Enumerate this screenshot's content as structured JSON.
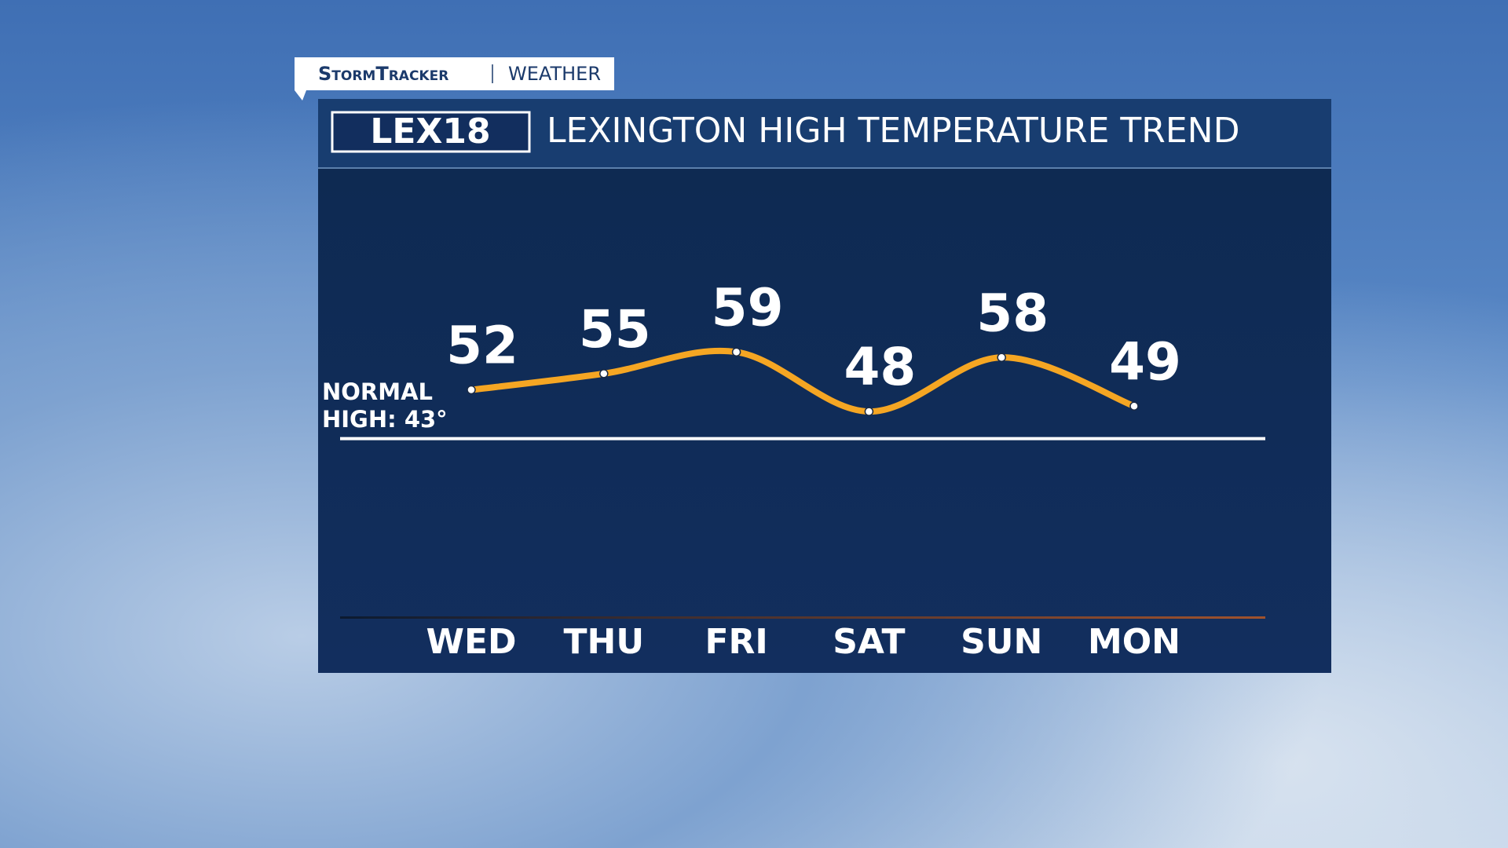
{
  "brand": {
    "name": "StormTracker",
    "section": "WEATHER"
  },
  "logo": "LEX18",
  "chart_data": {
    "type": "line",
    "title": "LEXINGTON HIGH TEMPERATURE TREND",
    "categories": [
      "WED",
      "THU",
      "FRI",
      "SAT",
      "SUN",
      "MON"
    ],
    "values": [
      52,
      55,
      59,
      48,
      58,
      49
    ],
    "color": "#f5a623",
    "ylim": [
      10,
      93
    ],
    "reference": {
      "label": "NORMAL HIGH: 43°",
      "value": 43,
      "color": "#ffffff"
    }
  }
}
